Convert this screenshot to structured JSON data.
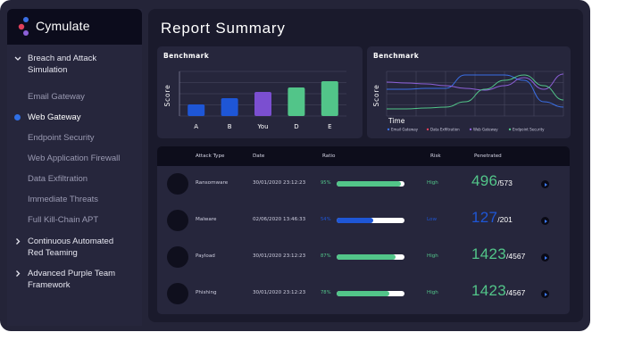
{
  "app": {
    "brand": "Cymulate"
  },
  "sidebar": {
    "items": [
      {
        "label": "Breach and Attack",
        "label2": "Simulation",
        "kind": "group"
      },
      {
        "label": "Email Gateway",
        "kind": "sub"
      },
      {
        "label": "Web Gateway",
        "kind": "active"
      },
      {
        "label": "Endpoint Security",
        "kind": "sub"
      },
      {
        "label": "Web Application Firewall",
        "kind": "sub"
      },
      {
        "label": "Data Exfiltration",
        "kind": "sub"
      },
      {
        "label": "Immediate Threats",
        "kind": "sub"
      },
      {
        "label": "Full Kill-Chain APT",
        "kind": "sub"
      },
      {
        "label": "Continuous Automated",
        "label2": "Red Teaming",
        "kind": "group"
      },
      {
        "label": "Advanced Purple Team",
        "label2": "Framework",
        "kind": "group"
      }
    ]
  },
  "main": {
    "title": "Report Summary"
  },
  "chart_data": [
    {
      "type": "bar",
      "title": "Benchmark",
      "ylabel": "Score",
      "categories": [
        "A",
        "B",
        "You",
        "D",
        "E"
      ],
      "values": [
        13,
        20,
        27,
        32,
        39
      ],
      "ylim": [
        0,
        50
      ],
      "colors": [
        "#1e56d6",
        "#1e56d6",
        "#7b4fd0",
        "#52c589",
        "#52c589"
      ]
    },
    {
      "type": "line",
      "title": "Benchmark",
      "ylabel": "Score",
      "xlabel": "Time",
      "legend_position": "bottom",
      "series": [
        {
          "name": "Email Gateway",
          "color": "#3a6fe6",
          "values": [
            30,
            30,
            31,
            31,
            46,
            46,
            46,
            40,
            16,
            10
          ]
        },
        {
          "name": "Data Exfiltration",
          "color": "#e0405a",
          "values": []
        },
        {
          "name": "Web Gateway",
          "color": "#8c60d8",
          "values": [
            38,
            37,
            36,
            34,
            31,
            29,
            34,
            43,
            30,
            47
          ]
        },
        {
          "name": "Endpoint Security",
          "color": "#52c589",
          "values": [
            8,
            8,
            9,
            10,
            16,
            30,
            40,
            46,
            34,
            18
          ]
        }
      ]
    }
  ],
  "table": {
    "headers": {
      "type": "Attack Type",
      "date": "Date",
      "ratio": "Ratio",
      "risk": "Risk",
      "penetrated": "Penetrated"
    },
    "rows": [
      {
        "type": "Ransomware",
        "date": "30/01/2020 23:12:23",
        "ratio_label": "95%",
        "ratio": 0.95,
        "risk": "High",
        "pen_big": "496",
        "pen_small": "/573",
        "color": "#52c589"
      },
      {
        "type": "Malware",
        "date": "02/06/2020 13:46:33",
        "ratio_label": "54%",
        "ratio": 0.54,
        "risk": "Low",
        "pen_big": "127",
        "pen_small": "/201",
        "color": "#1e56d6"
      },
      {
        "type": "Payload",
        "date": "30/01/2020 23:12:23",
        "ratio_label": "87%",
        "ratio": 0.87,
        "risk": "High",
        "pen_big": "1423",
        "pen_small": "/4567",
        "color": "#52c589"
      },
      {
        "type": "Phishing",
        "date": "30/01/2020 23:12:23",
        "ratio_label": "78%",
        "ratio": 0.78,
        "risk": "High",
        "pen_big": "1423",
        "pen_small": "/4567",
        "color": "#52c589"
      }
    ]
  }
}
